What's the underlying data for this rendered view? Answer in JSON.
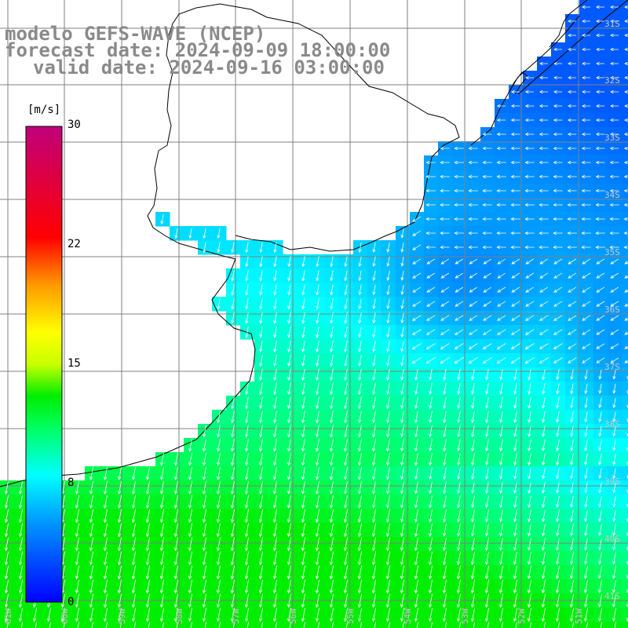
{
  "title": {
    "model": "modelo GEFS-WAVE (NCEP)",
    "forecast": "forecast date: 2024-09-09 18:00:00",
    "valid": "valid date: 2024-09-16 03:00:00"
  },
  "colorbar": {
    "unit": "[m/s]",
    "ticks": [
      {
        "value": 30,
        "label": "30"
      },
      {
        "value": 22,
        "label": "22"
      },
      {
        "value": 15,
        "label": "15"
      },
      {
        "value": 8,
        "label": "8"
      },
      {
        "value": 0,
        "label": "0"
      }
    ],
    "min": 0,
    "max": 30,
    "stops": [
      {
        "value": 0,
        "color": "#0000ff"
      },
      {
        "value": 5,
        "color": "#0096ff"
      },
      {
        "value": 8,
        "color": "#00ffff"
      },
      {
        "value": 11,
        "color": "#00ff60"
      },
      {
        "value": 13,
        "color": "#00ee00"
      },
      {
        "value": 15,
        "color": "#c8ff00"
      },
      {
        "value": 17,
        "color": "#ffff00"
      },
      {
        "value": 20,
        "color": "#ff9900"
      },
      {
        "value": 23,
        "color": "#ff0000"
      },
      {
        "value": 30,
        "color": "#c0007a"
      }
    ]
  },
  "lat_labels": [
    "31S",
    "32S",
    "33S",
    "34S",
    "35S",
    "36S",
    "37S",
    "38S",
    "39S",
    "40S",
    "41S"
  ],
  "lon_labels": [
    "61W",
    "60W",
    "59W",
    "58W",
    "57W",
    "56W",
    "55W",
    "54W",
    "53W",
    "52W",
    "51W"
  ],
  "colors": {
    "land": "#ffffff",
    "coast": "#000000",
    "grid": "#808080",
    "arrow": "#ffffff",
    "title": "#8a8a8a"
  }
}
